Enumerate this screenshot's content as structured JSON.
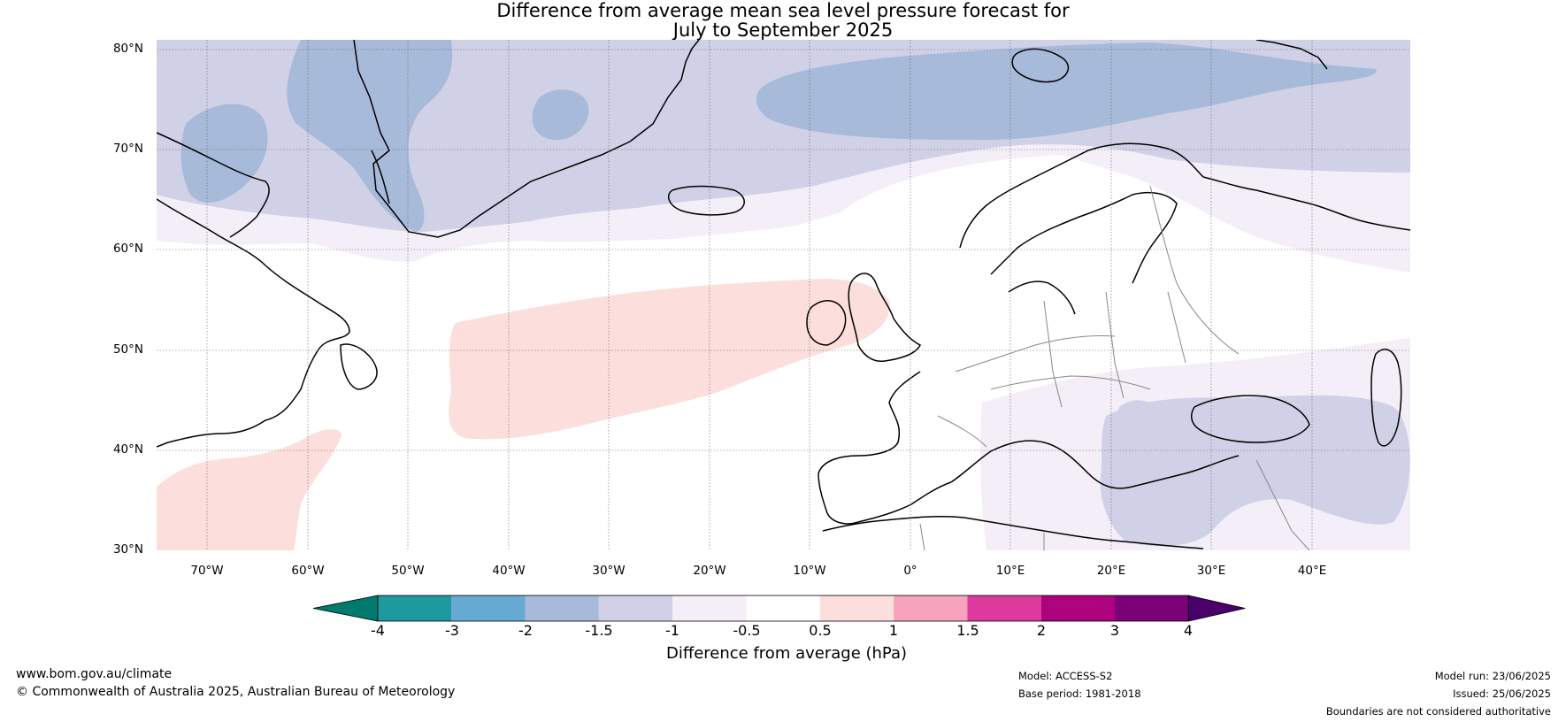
{
  "title": {
    "line1": "Difference from average mean sea level pressure forecast for",
    "line2": "July to September 2025"
  },
  "axes": {
    "lat_labels": [
      "80°N",
      "70°N",
      "60°N",
      "50°N",
      "40°N",
      "30°N"
    ],
    "lon_labels": [
      "70°W",
      "60°W",
      "50°W",
      "40°W",
      "30°W",
      "20°W",
      "10°W",
      "0°",
      "10°E",
      "20°E",
      "30°E",
      "40°E"
    ]
  },
  "legend": {
    "label": "Difference from average (hPa)",
    "ticks": [
      "-4",
      "-3",
      "-2",
      "-1.5",
      "-1",
      "-0.5",
      "0.5",
      "1",
      "1.5",
      "2",
      "3",
      "4"
    ],
    "colors": {
      "below_min": "#007a6c",
      "bins": [
        "#1d9aa0",
        "#66a9d2",
        "#a7bad9",
        "#d0d1e6",
        "#f3eef7",
        "#ffffff",
        "#fcdfdc",
        "#f8a3bc",
        "#dc3a9c",
        "#ae017e",
        "#7a0177"
      ],
      "above_max": "#49006a"
    }
  },
  "footer": {
    "website": "www.bom.gov.au/climate",
    "copyright": "© Commonwealth of Australia 2025, Australian Bureau of Meteorology",
    "model": "Model: ACCESS-S2",
    "base_period": "Base period: 1981-2018",
    "model_run": "Model run: 23/06/2025",
    "issued": "Issued: 25/06/2025",
    "disclaimer": "Boundaries are not considered authoritative"
  }
}
